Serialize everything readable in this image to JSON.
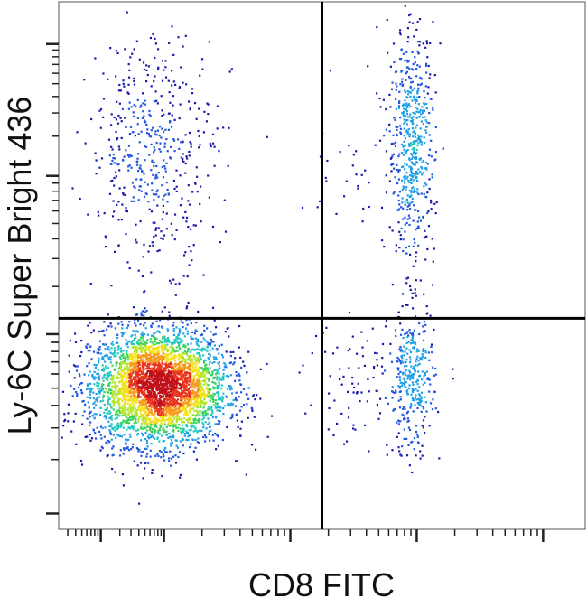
{
  "chart_data": {
    "type": "scatter",
    "style": "flow-cytometry-density-dot-plot",
    "title": "",
    "xlabel": "CD8 FITC",
    "ylabel": "Ly-6C Super Bright 436",
    "x_scale": "log",
    "y_scale": "log",
    "grid": false,
    "legend": "none",
    "quadrant_gate": {
      "x": 0.5,
      "y": 0.4
    },
    "density_colors": [
      "#1a1aa8",
      "#2255e0",
      "#1f9fe8",
      "#20c9c0",
      "#3dd35a",
      "#b4e52a",
      "#f2e21e",
      "#f79a1a",
      "#e8351c",
      "#c0101a"
    ],
    "quadrant_line_color": "#000000",
    "populations": [
      {
        "name": "",
        "cx": 0.19,
        "cy": 0.27,
        "sx": 0.065,
        "sy": 0.055,
        "n": 3600
      },
      {
        "name": "",
        "cx": 0.18,
        "cy": 0.72,
        "sx": 0.06,
        "sy": 0.11,
        "n": 480
      },
      {
        "name": "",
        "cx": 0.67,
        "cy": 0.73,
        "sx": 0.022,
        "sy": 0.11,
        "n": 560
      },
      {
        "name": "",
        "cx": 0.67,
        "cy": 0.28,
        "sx": 0.022,
        "sy": 0.07,
        "n": 330
      },
      {
        "name": "",
        "cx": 0.58,
        "cy": 0.28,
        "sx": 0.06,
        "sy": 0.06,
        "n": 90
      },
      {
        "name": "",
        "cx": 0.58,
        "cy": 0.72,
        "sx": 0.06,
        "sy": 0.09,
        "n": 40
      }
    ]
  }
}
